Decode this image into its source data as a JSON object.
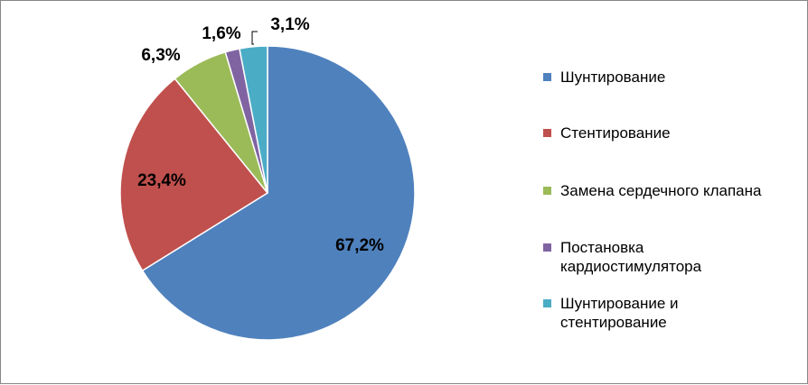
{
  "chart_data": {
    "type": "pie",
    "slices": [
      {
        "label": "Шунтирование",
        "value": 67.2,
        "display": "67,2%",
        "color": "#4F81BD"
      },
      {
        "label": "Стентирование",
        "value": 23.4,
        "display": "23,4%",
        "color": "#C0504D"
      },
      {
        "label": "Замена сердечного клапана",
        "value": 6.3,
        "display": "6,3%",
        "color": "#9BBB59"
      },
      {
        "label": "Постановка кардиостимулятора",
        "value": 1.6,
        "display": "1,6%",
        "color": "#8064A2"
      },
      {
        "label": "Шунтирование и стентирование",
        "value": 3.1,
        "display": "3,1%",
        "color": "#4BACC6"
      }
    ],
    "legend_position": "right",
    "start_angle": "12 o'clock",
    "direction": "clockwise"
  }
}
